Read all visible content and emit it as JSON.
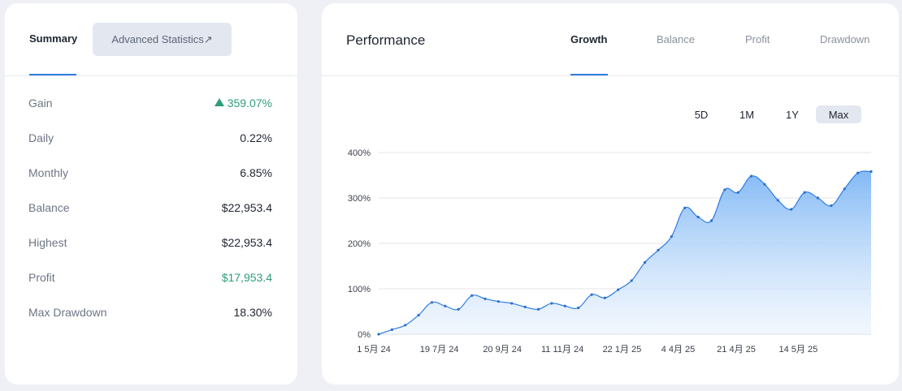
{
  "summary": {
    "tabs": [
      {
        "label": "Summary",
        "active": true
      },
      {
        "label": "Advanced Statistics↗",
        "active": false
      }
    ],
    "stats": [
      {
        "label": "Gain",
        "value": "359.07%",
        "color": "green",
        "trend": "up-triangle"
      },
      {
        "label": "Daily",
        "value": "0.22%"
      },
      {
        "label": "Monthly",
        "value": "6.85%"
      },
      {
        "label": "Balance",
        "value": "$22,953.4"
      },
      {
        "label": "Highest",
        "value": "$22,953.4"
      },
      {
        "label": "Profit",
        "value": "$17,953.4",
        "color": "green"
      },
      {
        "label": "Max Drawdown",
        "value": "18.30%"
      }
    ]
  },
  "performance": {
    "title": "Performance",
    "tabs": [
      {
        "label": "Growth",
        "active": true
      },
      {
        "label": "Balance",
        "active": false
      },
      {
        "label": "Profit",
        "active": false
      },
      {
        "label": "Drawdown",
        "active": false
      }
    ],
    "ranges": [
      {
        "label": "5D",
        "active": false
      },
      {
        "label": "1M",
        "active": false
      },
      {
        "label": "1Y",
        "active": false
      },
      {
        "label": "Max",
        "active": true
      }
    ]
  },
  "colors": {
    "accent": "#2f7de1",
    "positive": "#2e9e74",
    "line": "#2f7de1",
    "area_top": "#7db6f5",
    "area_bottom": "#eaf3fd"
  },
  "chart_data": {
    "type": "area",
    "title": "",
    "xlabel": "",
    "ylabel": "",
    "ylim": [
      0,
      400
    ],
    "y_ticks": [
      "0%",
      "100%",
      "200%",
      "300%",
      "400%"
    ],
    "x_ticks": [
      "1 5月 24",
      "19 7月 24",
      "20 9月 24",
      "11 11月 24",
      "22 1月 25",
      "4 4月 25",
      "21 4月 25",
      "14 5月 25"
    ],
    "grid": true,
    "series": [
      {
        "values": [
          0,
          10,
          20,
          42,
          70,
          62,
          55,
          85,
          78,
          72,
          68,
          60,
          55,
          68,
          62,
          58,
          87,
          80,
          98,
          118,
          158,
          185,
          215,
          278,
          258,
          250,
          318,
          312,
          348,
          330,
          295,
          275,
          312,
          300,
          283,
          320,
          355,
          358
        ]
      }
    ]
  }
}
